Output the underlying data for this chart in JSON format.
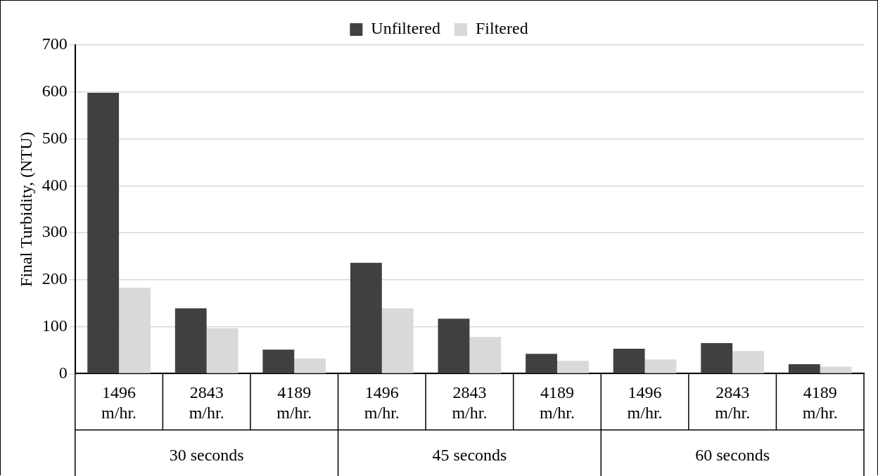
{
  "chart_data": {
    "type": "bar",
    "ylabel": "Final Turbidity, (NTU)",
    "categories": [
      "1496 m/hr.",
      "2843 m/hr.",
      "4189 m/hr.",
      "1496 m/hr.",
      "2843 m/hr.",
      "4189 m/hr.",
      "1496 m/hr.",
      "2843 m/hr.",
      "4189 m/hr."
    ],
    "series": [
      {
        "name": "Unfiltered",
        "color": "#404040",
        "values": [
          598,
          139,
          51,
          236,
          117,
          42,
          53,
          65,
          20
        ]
      },
      {
        "name": "Filtered",
        "color": "#d9d9d9",
        "values": [
          183,
          97,
          32,
          139,
          78,
          27,
          30,
          48,
          15
        ]
      }
    ],
    "annotations": [
      "30 seconds",
      "45 seconds",
      "60 seconds"
    ],
    "ylim": [
      0,
      700
    ],
    "yticks": [
      0,
      100,
      200,
      300,
      400,
      500,
      600,
      700
    ],
    "grid": "y",
    "legend": "top"
  }
}
